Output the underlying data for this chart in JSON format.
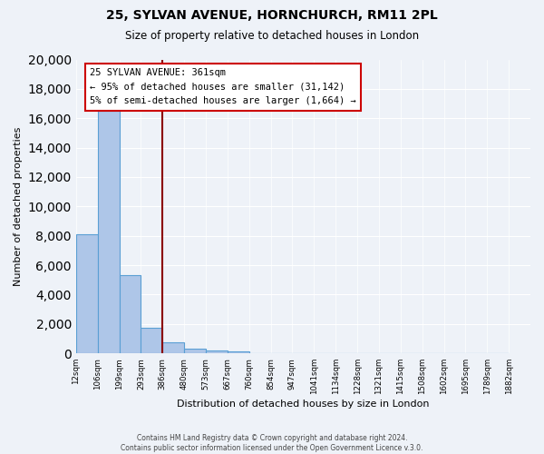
{
  "title": "25, SYLVAN AVENUE, HORNCHURCH, RM11 2PL",
  "subtitle": "Size of property relative to detached houses in London",
  "xlabel": "Distribution of detached houses by size in London",
  "ylabel": "Number of detached properties",
  "bin_labels": [
    "12sqm",
    "106sqm",
    "199sqm",
    "293sqm",
    "386sqm",
    "480sqm",
    "573sqm",
    "667sqm",
    "760sqm",
    "854sqm",
    "947sqm",
    "1041sqm",
    "1134sqm",
    "1228sqm",
    "1321sqm",
    "1415sqm",
    "1508sqm",
    "1602sqm",
    "1695sqm",
    "1789sqm",
    "1882sqm"
  ],
  "bar_values": [
    8100,
    16500,
    5300,
    1750,
    750,
    330,
    200,
    130,
    0,
    0,
    0,
    0,
    0,
    0,
    0,
    0,
    0,
    0,
    0,
    0
  ],
  "bar_color": "#aec6e8",
  "bar_edge_color": "#5a9fd4",
  "vline_x": 4.0,
  "vline_color": "#8b0000",
  "annotation_line1": "25 SYLVAN AVENUE: 361sqm",
  "annotation_line2": "← 95% of detached houses are smaller (31,142)",
  "annotation_line3": "5% of semi-detached houses are larger (1,664) →",
  "ylim": [
    0,
    20000
  ],
  "yticks": [
    0,
    2000,
    4000,
    6000,
    8000,
    10000,
    12000,
    14000,
    16000,
    18000,
    20000
  ],
  "footer_line1": "Contains HM Land Registry data © Crown copyright and database right 2024.",
  "footer_line2": "Contains public sector information licensed under the Open Government Licence v.3.0.",
  "bg_color": "#eef2f8",
  "plot_bg_color": "#eef2f8"
}
